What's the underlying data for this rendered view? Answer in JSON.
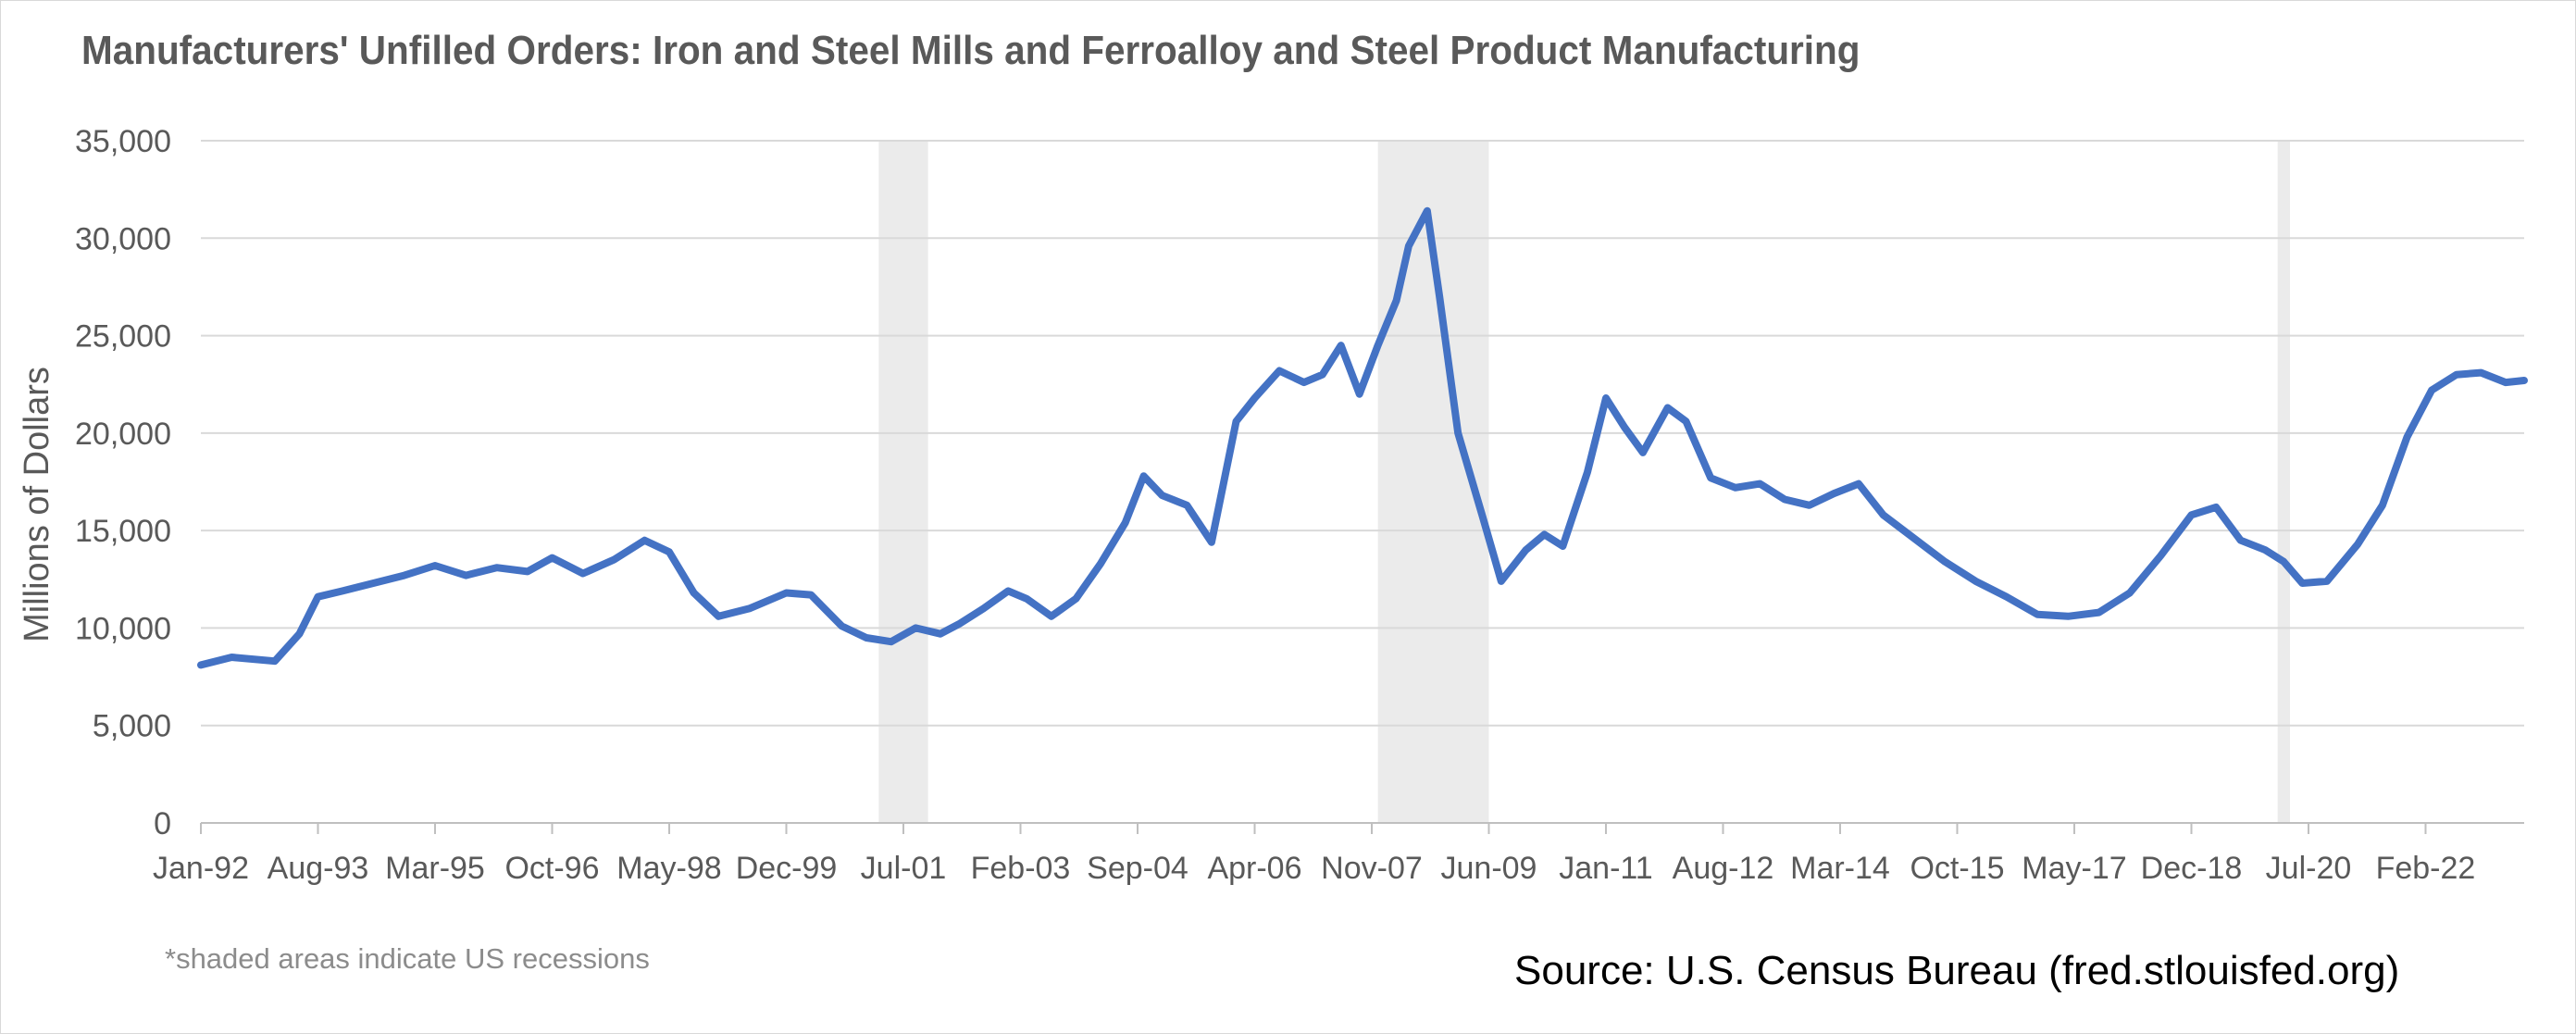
{
  "chart_data": {
    "type": "line",
    "title": "Manufacturers' Unfilled Orders: Iron and Steel Mills and Ferroalloy and Steel Product Manufacturing",
    "ylabel": "Millions of Dollars",
    "xlabel": "",
    "ylim": [
      0,
      35000
    ],
    "yticks": [
      0,
      5000,
      10000,
      15000,
      20000,
      25000,
      30000,
      35000
    ],
    "ytick_labels": [
      "0",
      "5,000",
      "10,000",
      "15,000",
      "20,000",
      "25,000",
      "30,000",
      "35,000"
    ],
    "xticks": [
      "Jan-92",
      "Aug-93",
      "Mar-95",
      "Oct-96",
      "May-98",
      "Dec-99",
      "Jul-01",
      "Feb-03",
      "Sep-04",
      "Apr-06",
      "Nov-07",
      "Jun-09",
      "Jan-11",
      "Aug-12",
      "Mar-14",
      "Oct-15",
      "May-17",
      "Dec-18",
      "Jul-20",
      "Feb-22"
    ],
    "x_start": "1992-01",
    "x_end": "2023-06",
    "grid": "horizontal",
    "line_color": "#4472c4",
    "recession_color": "#ebebeb",
    "recessions": [
      {
        "start": "2001-03",
        "end": "2001-11"
      },
      {
        "start": "2007-12",
        "end": "2009-06"
      },
      {
        "start": "2020-02",
        "end": "2020-04"
      }
    ],
    "series": [
      {
        "x": [
          "1992-01",
          "1992-06",
          "1993-01",
          "1993-05",
          "1993-08",
          "1993-12",
          "1994-05",
          "1994-10",
          "1995-03",
          "1995-08",
          "1996-01",
          "1996-06",
          "1996-10",
          "1997-03",
          "1997-08",
          "1998-01",
          "1998-05",
          "1998-09",
          "1999-01",
          "1999-06",
          "1999-12",
          "2000-04",
          "2000-09",
          "2001-01",
          "2001-05",
          "2001-09",
          "2002-01",
          "2002-04",
          "2002-08",
          "2002-12",
          "2003-03",
          "2003-07",
          "2003-11",
          "2004-03",
          "2004-07",
          "2004-10",
          "2005-01",
          "2005-05",
          "2005-09",
          "2006-01",
          "2006-04",
          "2006-08",
          "2006-12",
          "2007-03",
          "2007-06",
          "2007-09",
          "2007-12",
          "2008-03",
          "2008-05",
          "2008-08",
          "2008-10",
          "2009-01",
          "2009-05",
          "2009-08",
          "2009-12",
          "2010-03",
          "2010-06",
          "2010-10",
          "2011-01",
          "2011-04",
          "2011-07",
          "2011-11",
          "2012-02",
          "2012-06",
          "2012-10",
          "2013-02",
          "2013-06",
          "2013-10",
          "2014-02",
          "2014-06",
          "2014-10",
          "2015-03",
          "2015-08",
          "2016-01",
          "2016-06",
          "2016-11",
          "2017-04",
          "2017-09",
          "2018-02",
          "2018-07",
          "2018-12",
          "2019-04",
          "2019-08",
          "2019-12",
          "2020-03",
          "2020-06",
          "2020-10",
          "2021-03",
          "2021-07",
          "2021-11",
          "2022-03",
          "2022-07",
          "2022-11",
          "2023-03",
          "2023-06"
        ],
        "values": [
          8100,
          8500,
          8300,
          9700,
          11600,
          11900,
          12300,
          12700,
          13200,
          12700,
          13100,
          12900,
          13600,
          12800,
          13500,
          14500,
          13900,
          11800,
          10600,
          11000,
          11800,
          11700,
          10100,
          9500,
          9300,
          10000,
          9700,
          10200,
          11000,
          11900,
          11500,
          10600,
          11500,
          13300,
          15400,
          17800,
          16800,
          16300,
          14400,
          20600,
          21800,
          23200,
          22600,
          23000,
          24500,
          22000,
          24500,
          26800,
          29600,
          31400,
          27000,
          20000,
          15700,
          12400,
          14000,
          14800,
          14200,
          18000,
          21800,
          20300,
          19000,
          21300,
          20600,
          17700,
          17200,
          17400,
          16600,
          16300,
          16900,
          17400,
          15800,
          14600,
          13400,
          12400,
          11600,
          10700,
          10600,
          10800,
          11800,
          13700,
          15800,
          16200,
          14500,
          14000,
          13400,
          12300,
          12400,
          14300,
          16300,
          19800,
          22200,
          23000,
          23100,
          22600,
          22700
        ]
      }
    ],
    "footnote": "*shaded areas indicate US recessions",
    "source": "Source: U.S. Census Bureau (fred.stlouisfed.org)"
  }
}
